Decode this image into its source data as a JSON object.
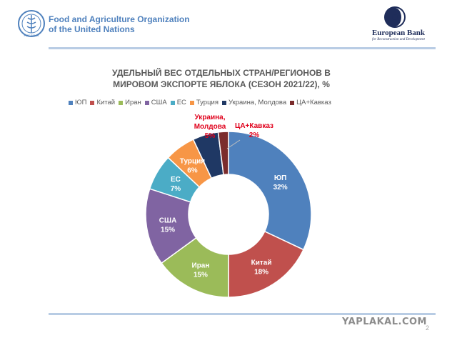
{
  "header": {
    "fao_name_line1": "Food and Agriculture Organization",
    "fao_name_line2": "of the United Nations",
    "ebrd_name": "European Bank",
    "ebrd_subtitle": "for Reconstruction and Development"
  },
  "colors": {
    "accent_rule": "#b8cce4",
    "fao_blue": "#4f81bd",
    "ebrd_navy": "#1f2d5a",
    "callout_red": "#e0001b"
  },
  "chart_data": {
    "type": "pie",
    "subtype": "donut",
    "title_line1": "УДЕЛЬНЫЙ ВЕС ОТДЕЛЬНЫХ СТРАН/РЕГИОНОВ В",
    "title_line2": "МИРОВОМ ЭКСПОРТЕ ЯБЛОКА (СЕЗОН 2021/22), %",
    "legend_position": "top",
    "slices": [
      {
        "name": "ЮП",
        "label": "ЮП",
        "value": 32,
        "value_label": "32%",
        "color": "#4f81bd"
      },
      {
        "name": "Китай",
        "label": "Китай",
        "value": 18,
        "value_label": "18%",
        "color": "#c0504d"
      },
      {
        "name": "Иран",
        "label": "Иран",
        "value": 15,
        "value_label": "15%",
        "color": "#9bbb59"
      },
      {
        "name": "США",
        "label": "США",
        "value": 15,
        "value_label": "15%",
        "color": "#8064a2"
      },
      {
        "name": "ЕС",
        "label": "ЕС",
        "value": 7,
        "value_label": "7%",
        "color": "#4bacc6"
      },
      {
        "name": "Турция",
        "label": "Турция",
        "value": 6,
        "value_label": "6%",
        "color": "#f79646"
      },
      {
        "name": "Украина, Молдова",
        "label": "Украина, Молдова",
        "value": 5,
        "value_label": "5%",
        "color": "#1f3864"
      },
      {
        "name": "ЦА+Кавказ",
        "label": "ЦА+Кавказ",
        "value": 2,
        "value_label": "2%",
        "color": "#7b2c2c"
      }
    ],
    "callouts": {
      "ukraine_line1": "Украина,",
      "ukraine_line2": "Молдова",
      "ukraine_value": "5%",
      "ca_line1": "ЦА+Кавказ",
      "ca_value": "2%"
    }
  },
  "footer": {
    "watermark": "YAPLAKAL.COM",
    "page_number": "2"
  }
}
